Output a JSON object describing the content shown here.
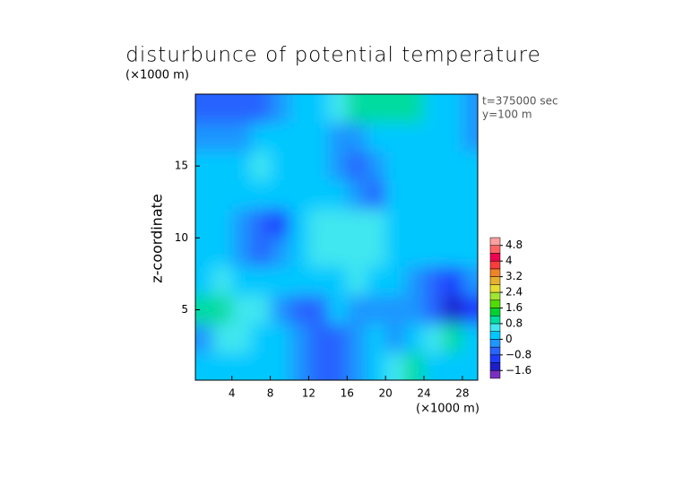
{
  "chart_data": {
    "type": "contour",
    "title": "disturbunce of potential temperature",
    "ylabel": "z-coordinate",
    "x_unit": "(×1000 m)",
    "y_unit": "(×1000 m)",
    "annotations": [
      "t=375000 sec",
      "y=100 m"
    ],
    "xlim": [
      0.2,
      29.6
    ],
    "ylim": [
      0.1,
      20
    ],
    "xticks": [
      4,
      8,
      12,
      16,
      20,
      24,
      28
    ],
    "yticks": [
      5,
      10,
      15
    ],
    "x": [
      1,
      3,
      5,
      7,
      9,
      11,
      13,
      15,
      17,
      19,
      21,
      23,
      25,
      27,
      29
    ],
    "y": [
      19,
      17,
      15,
      13,
      11,
      9,
      7,
      5,
      3,
      1
    ],
    "z": [
      [
        -0.6,
        -0.8,
        -0.8,
        -0.6,
        -0.4,
        0.1,
        0.2,
        0.4,
        0.9,
        1.0,
        1.0,
        0.8,
        0.2,
        0,
        -0.4
      ],
      [
        -0.2,
        -0.3,
        -0.2,
        0,
        0.1,
        0.1,
        0,
        -0.2,
        -0.3,
        0.2,
        0.3,
        0.2,
        0.3,
        0.2,
        -0.2
      ],
      [
        0.2,
        0.3,
        0.2,
        0.4,
        0.3,
        0.2,
        0.1,
        -0.2,
        -0.8,
        -0.4,
        0.1,
        0.3,
        0.2,
        0.2,
        0.1
      ],
      [
        0,
        0.2,
        0.3,
        0.2,
        0.1,
        0.2,
        0.3,
        0.2,
        -0.4,
        -0.6,
        0.1,
        0.2,
        0.3,
        0.1,
        0.1
      ],
      [
        0.1,
        0.2,
        -0.2,
        -0.6,
        -1.0,
        0.1,
        0.4,
        0.5,
        0.6,
        0.4,
        0.3,
        0.2,
        0.1,
        0.2,
        0.1
      ],
      [
        0.1,
        0.2,
        -0.2,
        -0.8,
        -0.4,
        0.3,
        0.5,
        0.6,
        0.5,
        0.4,
        0.3,
        0.1,
        0.2,
        0.1,
        0.1
      ],
      [
        0.3,
        0.4,
        0.2,
        0.1,
        0.2,
        0.3,
        0.2,
        0.3,
        0.4,
        0.2,
        0,
        -0.3,
        -0.6,
        -1.2,
        -0.2
      ],
      [
        0.8,
        1.0,
        0.6,
        0.4,
        -0.4,
        -0.6,
        -0.5,
        0.1,
        -0.4,
        -0.4,
        -0.3,
        -0.4,
        -0.8,
        -1.6,
        -1.0
      ],
      [
        -0.3,
        0.4,
        0.6,
        0.3,
        0.2,
        -0.2,
        -0.6,
        -0.8,
        -0.3,
        0,
        -0.2,
        0.3,
        0.6,
        0.9,
        0.2
      ],
      [
        0.1,
        0.2,
        0.3,
        0.1,
        0.2,
        -0.4,
        -0.8,
        -0.8,
        -0.3,
        0.1,
        0.5,
        0.8,
        0.3,
        0.2,
        0.1
      ]
    ],
    "colorbar": {
      "levels": [
        -2.0,
        -1.6,
        -1.2,
        -0.8,
        -0.4,
        0,
        0.4,
        0.8,
        1.2,
        1.6,
        2.0,
        2.4,
        2.8,
        3.2,
        3.6,
        4.0,
        4.4,
        4.8,
        5.2
      ],
      "colors": [
        "#7a2fc0",
        "#1e1ec8",
        "#1e3cff",
        "#2864ff",
        "#1e96ff",
        "#00c8ff",
        "#40e6f0",
        "#00dca0",
        "#00d232",
        "#50dc00",
        "#a0e632",
        "#e6dc32",
        "#e6af2d",
        "#f08228",
        "#fa3c3c",
        "#f00050",
        "#ff6464",
        "#ffa0a0"
      ],
      "ticks": [
        {
          "value": -1.6,
          "label": "−1.6"
        },
        {
          "value": -0.8,
          "label": "−0.8"
        },
        0,
        0.8,
        1.6,
        2.4,
        3.2,
        4,
        4.8
      ]
    }
  }
}
